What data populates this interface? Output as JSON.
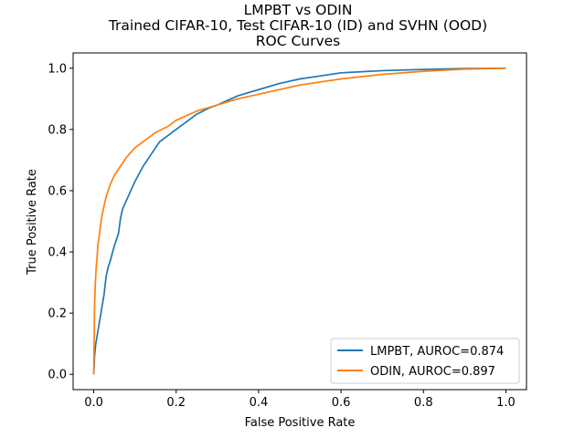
{
  "chart_data": {
    "type": "line",
    "title": [
      "LMPBT vs ODIN",
      "Trained CIFAR-10, Test CIFAR-10 (ID) and SVHN (OOD)",
      "ROC Curves"
    ],
    "xlabel": "False Positive Rate",
    "ylabel": "True Positive Rate",
    "xlim": [
      -0.05,
      1.05
    ],
    "ylim": [
      -0.05,
      1.05
    ],
    "xticks": [
      0.0,
      0.2,
      0.4,
      0.6,
      0.8,
      1.0
    ],
    "yticks": [
      0.0,
      0.2,
      0.4,
      0.6,
      0.8,
      1.0
    ],
    "xtick_labels": [
      "0.0",
      "0.2",
      "0.4",
      "0.6",
      "0.8",
      "1.0"
    ],
    "ytick_labels": [
      "0.0",
      "0.2",
      "0.4",
      "0.6",
      "0.8",
      "1.0"
    ],
    "grid": false,
    "legend_position": "lower-right",
    "series": [
      {
        "name": "LMPBT, AUROC=0.874",
        "color": "#1f77b4",
        "x": [
          0.0,
          0.002,
          0.005,
          0.01,
          0.015,
          0.02,
          0.025,
          0.03,
          0.035,
          0.04,
          0.05,
          0.06,
          0.065,
          0.07,
          0.08,
          0.09,
          0.1,
          0.12,
          0.14,
          0.16,
          0.18,
          0.2,
          0.22,
          0.25,
          0.28,
          0.3,
          0.35,
          0.4,
          0.45,
          0.5,
          0.55,
          0.6,
          0.7,
          0.8,
          0.9,
          1.0
        ],
        "y": [
          0.0,
          0.06,
          0.1,
          0.14,
          0.18,
          0.22,
          0.26,
          0.32,
          0.35,
          0.37,
          0.42,
          0.46,
          0.51,
          0.54,
          0.57,
          0.6,
          0.63,
          0.68,
          0.72,
          0.76,
          0.78,
          0.8,
          0.82,
          0.85,
          0.87,
          0.88,
          0.91,
          0.93,
          0.95,
          0.965,
          0.975,
          0.985,
          0.992,
          0.996,
          0.999,
          1.0
        ]
      },
      {
        "name": "ODIN, AUROC=0.897",
        "color": "#ff7f0e",
        "x": [
          0.0,
          0.002,
          0.004,
          0.006,
          0.008,
          0.01,
          0.015,
          0.02,
          0.025,
          0.03,
          0.04,
          0.05,
          0.06,
          0.07,
          0.08,
          0.1,
          0.12,
          0.15,
          0.18,
          0.2,
          0.25,
          0.3,
          0.35,
          0.4,
          0.45,
          0.5,
          0.6,
          0.7,
          0.8,
          0.9,
          1.0
        ],
        "y": [
          0.0,
          0.22,
          0.3,
          0.35,
          0.38,
          0.42,
          0.47,
          0.52,
          0.55,
          0.58,
          0.62,
          0.65,
          0.67,
          0.69,
          0.71,
          0.74,
          0.76,
          0.79,
          0.81,
          0.83,
          0.86,
          0.88,
          0.9,
          0.915,
          0.93,
          0.945,
          0.965,
          0.98,
          0.99,
          0.997,
          1.0
        ]
      }
    ]
  }
}
